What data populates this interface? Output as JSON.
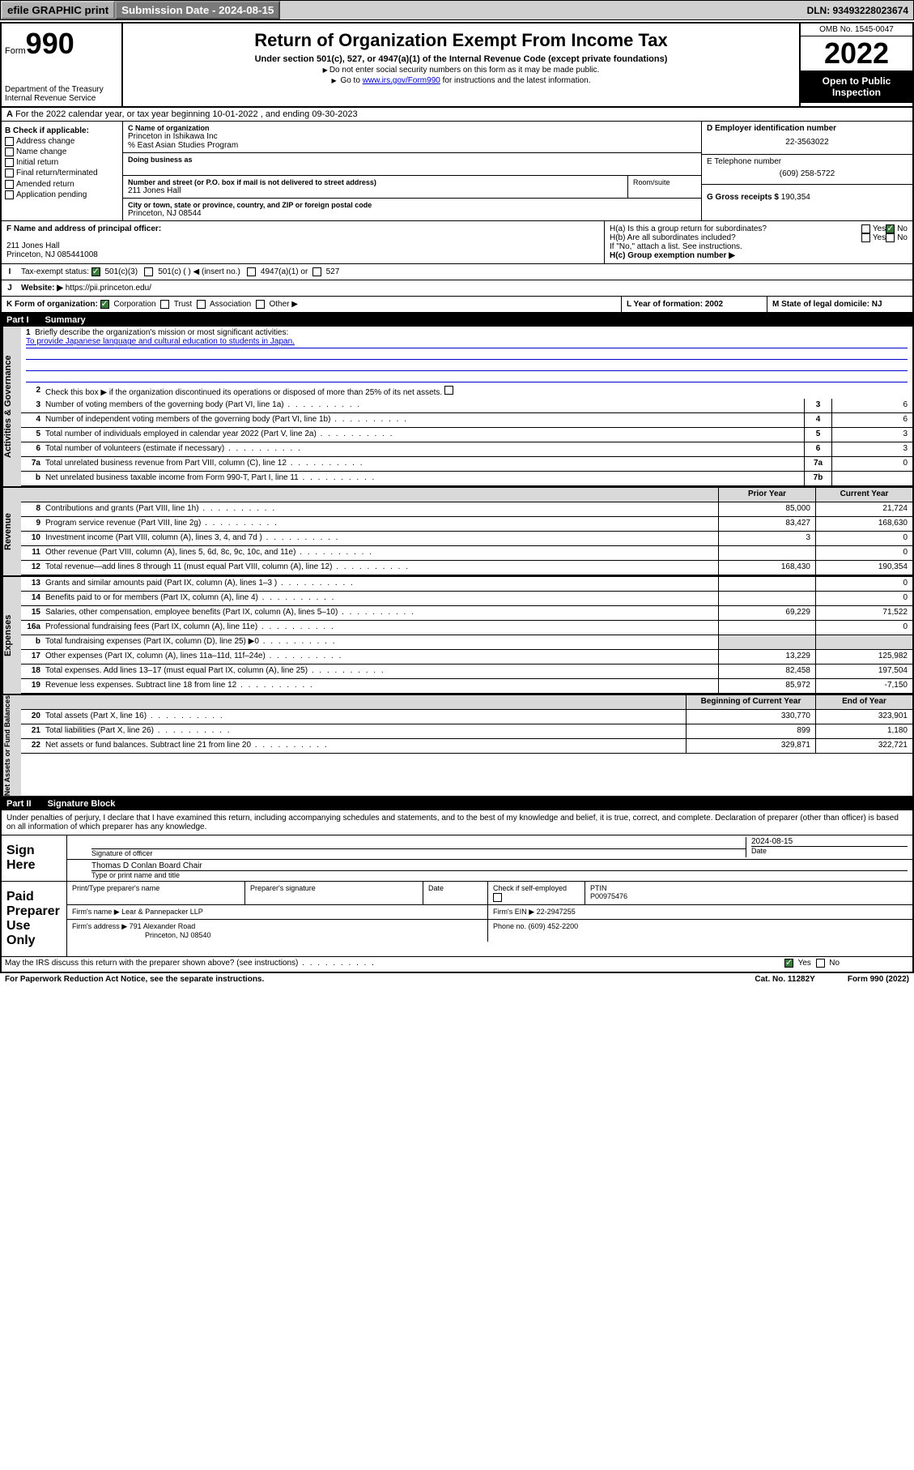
{
  "topbar": {
    "efile": "efile GRAPHIC print",
    "submission": "Submission Date - 2024-08-15",
    "dln": "DLN: 93493228023674"
  },
  "header": {
    "form_word": "Form",
    "form_num": "990",
    "dept": "Department of the Treasury\nInternal Revenue Service",
    "title": "Return of Organization Exempt From Income Tax",
    "subtitle": "Under section 501(c), 527, or 4947(a)(1) of the Internal Revenue Code (except private foundations)",
    "note1": "Do not enter social security numbers on this form as it may be made public.",
    "note2_pre": "Go to ",
    "note2_link": "www.irs.gov/Form990",
    "note2_post": " for instructions and the latest information.",
    "omb": "OMB No. 1545-0047",
    "year": "2022",
    "open": "Open to Public Inspection"
  },
  "rowA": "For the 2022 calendar year, or tax year beginning 10-01-2022   , and ending 09-30-2023",
  "boxB": {
    "label": "B Check if applicable:",
    "opts": [
      "Address change",
      "Name change",
      "Initial return",
      "Final return/terminated",
      "Amended return",
      "Application pending"
    ]
  },
  "boxC": {
    "name_lbl": "C Name of organization",
    "name1": "Princeton in Ishikawa Inc",
    "name2": "% East Asian Studies Program",
    "dba_lbl": "Doing business as",
    "addr_lbl": "Number and street (or P.O. box if mail is not delivered to street address)",
    "addr": "211 Jones Hall",
    "room_lbl": "Room/suite",
    "city_lbl": "City or town, state or province, country, and ZIP or foreign postal code",
    "city": "Princeton, NJ  08544"
  },
  "boxD": {
    "lbl": "D Employer identification number",
    "val": "22-3563022"
  },
  "boxE": {
    "lbl": "E Telephone number",
    "val": "(609) 258-5722"
  },
  "boxG": {
    "lbl": "G Gross receipts $",
    "val": "190,354"
  },
  "boxF": {
    "lbl": "F Name and address of principal officer:",
    "line1": "211 Jones Hall",
    "line2": "Princeton, NJ  085441008"
  },
  "boxH": {
    "a": "H(a)  Is this a group return for subordinates?",
    "b": "H(b)  Are all subordinates included?",
    "b_note": "If \"No,\" attach a list. See instructions.",
    "c": "H(c)  Group exemption number ▶",
    "yes": "Yes",
    "no": "No"
  },
  "rowI": {
    "lbl": "Tax-exempt status:",
    "o1": "501(c)(3)",
    "o2": "501(c) (  ) ◀ (insert no.)",
    "o3": "4947(a)(1) or",
    "o4": "527"
  },
  "rowJ": {
    "lbl": "Website: ▶",
    "val": "https://pii.princeton.edu/"
  },
  "rowK": {
    "lbl": "K Form of organization:",
    "o1": "Corporation",
    "o2": "Trust",
    "o3": "Association",
    "o4": "Other ▶",
    "L": "L Year of formation: 2002",
    "M": "M State of legal domicile: NJ"
  },
  "part1": {
    "num": "Part I",
    "title": "Summary"
  },
  "summary": {
    "q1": "Briefly describe the organization's mission or most significant activities:",
    "mission": "To provide Japanese language and cultural education to students in Japan.",
    "q2": "Check this box ▶       if the organization discontinued its operations or disposed of more than 25% of its net assets.",
    "lines": [
      {
        "n": "3",
        "t": "Number of voting members of the governing body (Part VI, line 1a)",
        "a": "3",
        "v": "6"
      },
      {
        "n": "4",
        "t": "Number of independent voting members of the governing body (Part VI, line 1b)",
        "a": "4",
        "v": "6"
      },
      {
        "n": "5",
        "t": "Total number of individuals employed in calendar year 2022 (Part V, line 2a)",
        "a": "5",
        "v": "3"
      },
      {
        "n": "6",
        "t": "Total number of volunteers (estimate if necessary)",
        "a": "6",
        "v": "3"
      },
      {
        "n": "7a",
        "t": "Total unrelated business revenue from Part VIII, column (C), line 12",
        "a": "7a",
        "v": "0"
      },
      {
        "n": "b",
        "t": "Net unrelated business taxable income from Form 990-T, Part I, line 11",
        "a": "7b",
        "v": ""
      }
    ],
    "prior": "Prior Year",
    "current": "Current Year",
    "rev": [
      {
        "n": "8",
        "t": "Contributions and grants (Part VIII, line 1h)",
        "p": "85,000",
        "c": "21,724"
      },
      {
        "n": "9",
        "t": "Program service revenue (Part VIII, line 2g)",
        "p": "83,427",
        "c": "168,630"
      },
      {
        "n": "10",
        "t": "Investment income (Part VIII, column (A), lines 3, 4, and 7d )",
        "p": "3",
        "c": "0"
      },
      {
        "n": "11",
        "t": "Other revenue (Part VIII, column (A), lines 5, 6d, 8c, 9c, 10c, and 11e)",
        "p": "",
        "c": "0"
      },
      {
        "n": "12",
        "t": "Total revenue—add lines 8 through 11 (must equal Part VIII, column (A), line 12)",
        "p": "168,430",
        "c": "190,354"
      }
    ],
    "exp": [
      {
        "n": "13",
        "t": "Grants and similar amounts paid (Part IX, column (A), lines 1–3 )",
        "p": "",
        "c": "0"
      },
      {
        "n": "14",
        "t": "Benefits paid to or for members (Part IX, column (A), line 4)",
        "p": "",
        "c": "0"
      },
      {
        "n": "15",
        "t": "Salaries, other compensation, employee benefits (Part IX, column (A), lines 5–10)",
        "p": "69,229",
        "c": "71,522"
      },
      {
        "n": "16a",
        "t": "Professional fundraising fees (Part IX, column (A), line 11e)",
        "p": "",
        "c": "0"
      },
      {
        "n": "b",
        "t": "Total fundraising expenses (Part IX, column (D), line 25) ▶0",
        "p": null,
        "c": null
      },
      {
        "n": "17",
        "t": "Other expenses (Part IX, column (A), lines 11a–11d, 11f–24e)",
        "p": "13,229",
        "c": "125,982"
      },
      {
        "n": "18",
        "t": "Total expenses. Add lines 13–17 (must equal Part IX, column (A), line 25)",
        "p": "82,458",
        "c": "197,504"
      },
      {
        "n": "19",
        "t": "Revenue less expenses. Subtract line 18 from line 12",
        "p": "85,972",
        "c": "-7,150"
      }
    ],
    "beg": "Beginning of Current Year",
    "end": "End of Year",
    "net": [
      {
        "n": "20",
        "t": "Total assets (Part X, line 16)",
        "p": "330,770",
        "c": "323,901"
      },
      {
        "n": "21",
        "t": "Total liabilities (Part X, line 26)",
        "p": "899",
        "c": "1,180"
      },
      {
        "n": "22",
        "t": "Net assets or fund balances. Subtract line 21 from line 20",
        "p": "329,871",
        "c": "322,721"
      }
    ]
  },
  "sides": {
    "gov": "Activities & Governance",
    "rev": "Revenue",
    "exp": "Expenses",
    "net": "Net Assets or Fund Balances"
  },
  "part2": {
    "num": "Part II",
    "title": "Signature Block"
  },
  "sig": {
    "decl": "Under penalties of perjury, I declare that I have examined this return, including accompanying schedules and statements, and to the best of my knowledge and belief, it is true, correct, and complete. Declaration of preparer (other than officer) is based on all information of which preparer has any knowledge.",
    "sign_here": "Sign Here",
    "sig_officer": "Signature of officer",
    "date": "Date",
    "date_val": "2024-08-15",
    "name": "Thomas D Conlan  Board Chair",
    "name_lbl": "Type or print name and title",
    "paid": "Paid Preparer Use Only",
    "p_name_lbl": "Print/Type preparer's name",
    "p_sig_lbl": "Preparer's signature",
    "p_date_lbl": "Date",
    "p_check": "Check        if self-employed",
    "ptin_lbl": "PTIN",
    "ptin": "P00975476",
    "firm_name_lbl": "Firm's name    ▶",
    "firm_name": "Lear & Pannepacker LLP",
    "firm_ein_lbl": "Firm's EIN ▶",
    "firm_ein": "22-2947255",
    "firm_addr_lbl": "Firm's address ▶",
    "firm_addr1": "791 Alexander Road",
    "firm_addr2": "Princeton, NJ  08540",
    "phone_lbl": "Phone no.",
    "phone": "(609) 452-2200",
    "discuss": "May the IRS discuss this return with the preparer shown above? (see instructions)"
  },
  "footer": {
    "pra": "For Paperwork Reduction Act Notice, see the separate instructions.",
    "cat": "Cat. No. 11282Y",
    "form": "Form 990 (2022)"
  }
}
